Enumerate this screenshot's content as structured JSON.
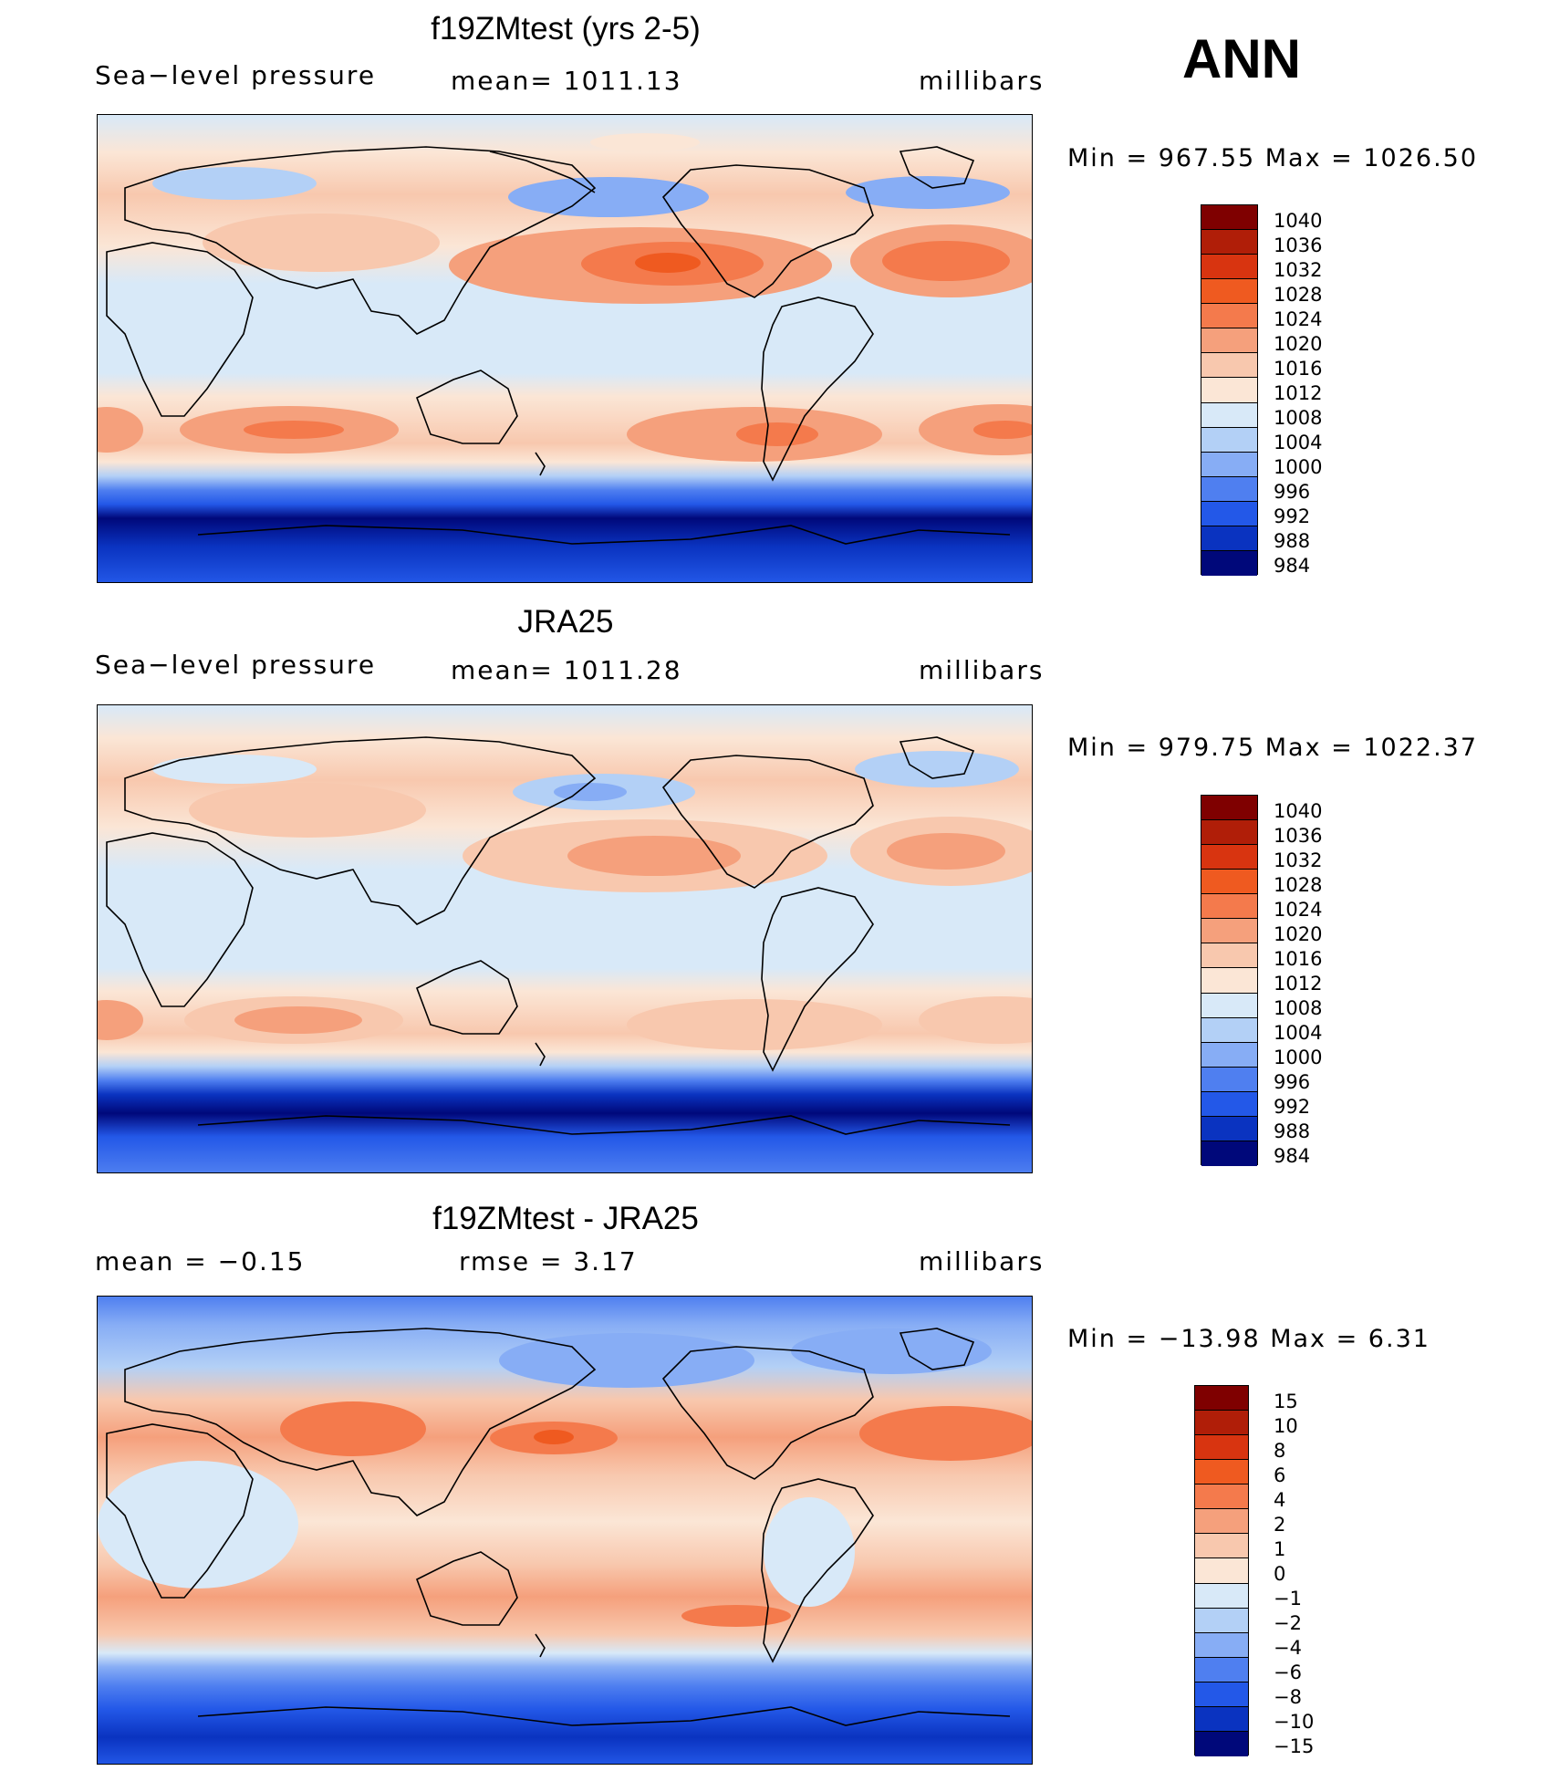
{
  "season": "ANN",
  "panels": [
    {
      "title": "f19ZMtest (yrs 2-5)",
      "left_text": "Sea−level pressure",
      "center_text": "mean=  1011.13",
      "right_text": "millibars",
      "minmax": "Min  =  967.55  Max  =  1026.50",
      "colorbar": {
        "levels": [
          "1040",
          "1036",
          "1032",
          "1028",
          "1024",
          "1020",
          "1016",
          "1012",
          "1008",
          "1004",
          "1000",
          "996",
          "992",
          "988",
          "984"
        ],
        "colors": [
          "#7f0000",
          "#b01e08",
          "#d83410",
          "#ef5a20",
          "#f47a4c",
          "#f5a07c",
          "#f8c8ae",
          "#fbe6d6",
          "#d8e9f8",
          "#b3d0f6",
          "#87adf5",
          "#4f7ff0",
          "#2358e8",
          "#0a33c0",
          "#00087a"
        ]
      }
    },
    {
      "title": "JRA25",
      "left_text": "Sea−level pressure",
      "center_text": "mean=  1011.28",
      "right_text": "millibars",
      "minmax": "Min  =  979.75  Max  =  1022.37",
      "colorbar": {
        "levels": [
          "1040",
          "1036",
          "1032",
          "1028",
          "1024",
          "1020",
          "1016",
          "1012",
          "1008",
          "1004",
          "1000",
          "996",
          "992",
          "988",
          "984"
        ],
        "colors": [
          "#7f0000",
          "#b01e08",
          "#d83410",
          "#ef5a20",
          "#f47a4c",
          "#f5a07c",
          "#f8c8ae",
          "#fbe6d6",
          "#d8e9f8",
          "#b3d0f6",
          "#87adf5",
          "#4f7ff0",
          "#2358e8",
          "#0a33c0",
          "#00087a"
        ]
      }
    },
    {
      "title": "f19ZMtest - JRA25",
      "left_text": "mean  =    −0.15",
      "center_text": "rmse  =     3.17",
      "right_text": "millibars",
      "minmax": "Min  =  −13.98  Max  =      6.31",
      "colorbar": {
        "levels": [
          "15",
          "10",
          "8",
          "6",
          "4",
          "2",
          "1",
          "0",
          "−1",
          "−2",
          "−4",
          "−6",
          "−8",
          "−10",
          "−15"
        ],
        "colors": [
          "#7f0000",
          "#b01e08",
          "#d83410",
          "#ef5a20",
          "#f47a4c",
          "#f5a07c",
          "#f8c8ae",
          "#fbe6d6",
          "#d8e9f8",
          "#b3d0f6",
          "#87adf5",
          "#4f7ff0",
          "#2358e8",
          "#0a33c0",
          "#00087a"
        ]
      }
    }
  ]
}
